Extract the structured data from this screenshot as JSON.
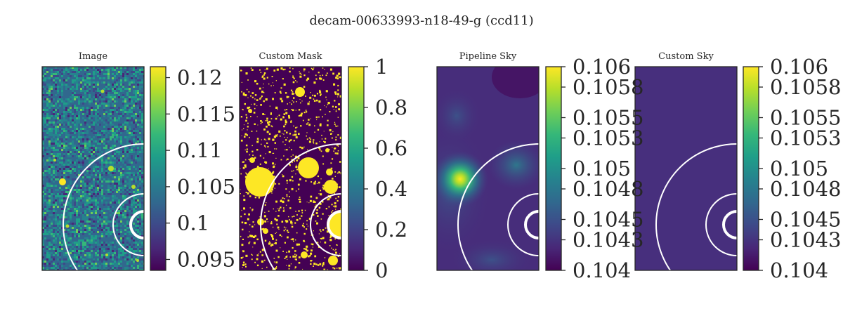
{
  "figure": {
    "title": "decam-00633993-n18-49-g (ccd11)"
  },
  "colors": {
    "viridis": [
      "#440154",
      "#482878",
      "#3e4989",
      "#31688e",
      "#26828e",
      "#1f9e89",
      "#35b779",
      "#6ece58",
      "#b5de2b",
      "#fde725"
    ]
  },
  "chart_data": [
    {
      "type": "heatmap",
      "title": "Image",
      "colormap": "viridis",
      "content": "noisy sky image with scattered small sources",
      "colorbar": {
        "ticks": [
          "0.12",
          "0.115",
          "0.11",
          "0.105",
          "0.1",
          "0.095"
        ],
        "range": [
          0.0935,
          0.1215
        ]
      },
      "overlays": "white circles (arcs) centered at right edge"
    },
    {
      "type": "heatmap",
      "title": "Custom Mask",
      "colormap": "viridis",
      "content": "binary mask: masked pixels and circular source masks",
      "colorbar": {
        "ticks": [
          "1",
          "0.8",
          "0.6",
          "0.4",
          "0.2",
          "0"
        ],
        "range": [
          0,
          1
        ]
      },
      "overlays": "white circles (arcs) centered at right edge"
    },
    {
      "type": "heatmap",
      "title": "Pipeline Sky",
      "colormap": "viridis",
      "content": "smooth sky model with bright blob at left-middle",
      "colorbar": {
        "ticks": [
          "0.106",
          "0.1058",
          "0.1055",
          "0.1053",
          "0.105",
          "0.1048",
          "0.1045",
          "0.1043",
          "0.104"
        ],
        "range": [
          0.104,
          0.106
        ]
      },
      "overlays": "white circles (arcs) centered at right edge"
    },
    {
      "type": "heatmap",
      "title": "Custom Sky",
      "colormap": "viridis",
      "content": "uniform sky level",
      "colorbar": {
        "ticks": [
          "0.106",
          "0.1058",
          "0.1055",
          "0.1053",
          "0.105",
          "0.1048",
          "0.1045",
          "0.1043",
          "0.104"
        ],
        "range": [
          0.104,
          0.106
        ]
      },
      "overlays": "white circles (arcs) centered at right edge"
    }
  ]
}
